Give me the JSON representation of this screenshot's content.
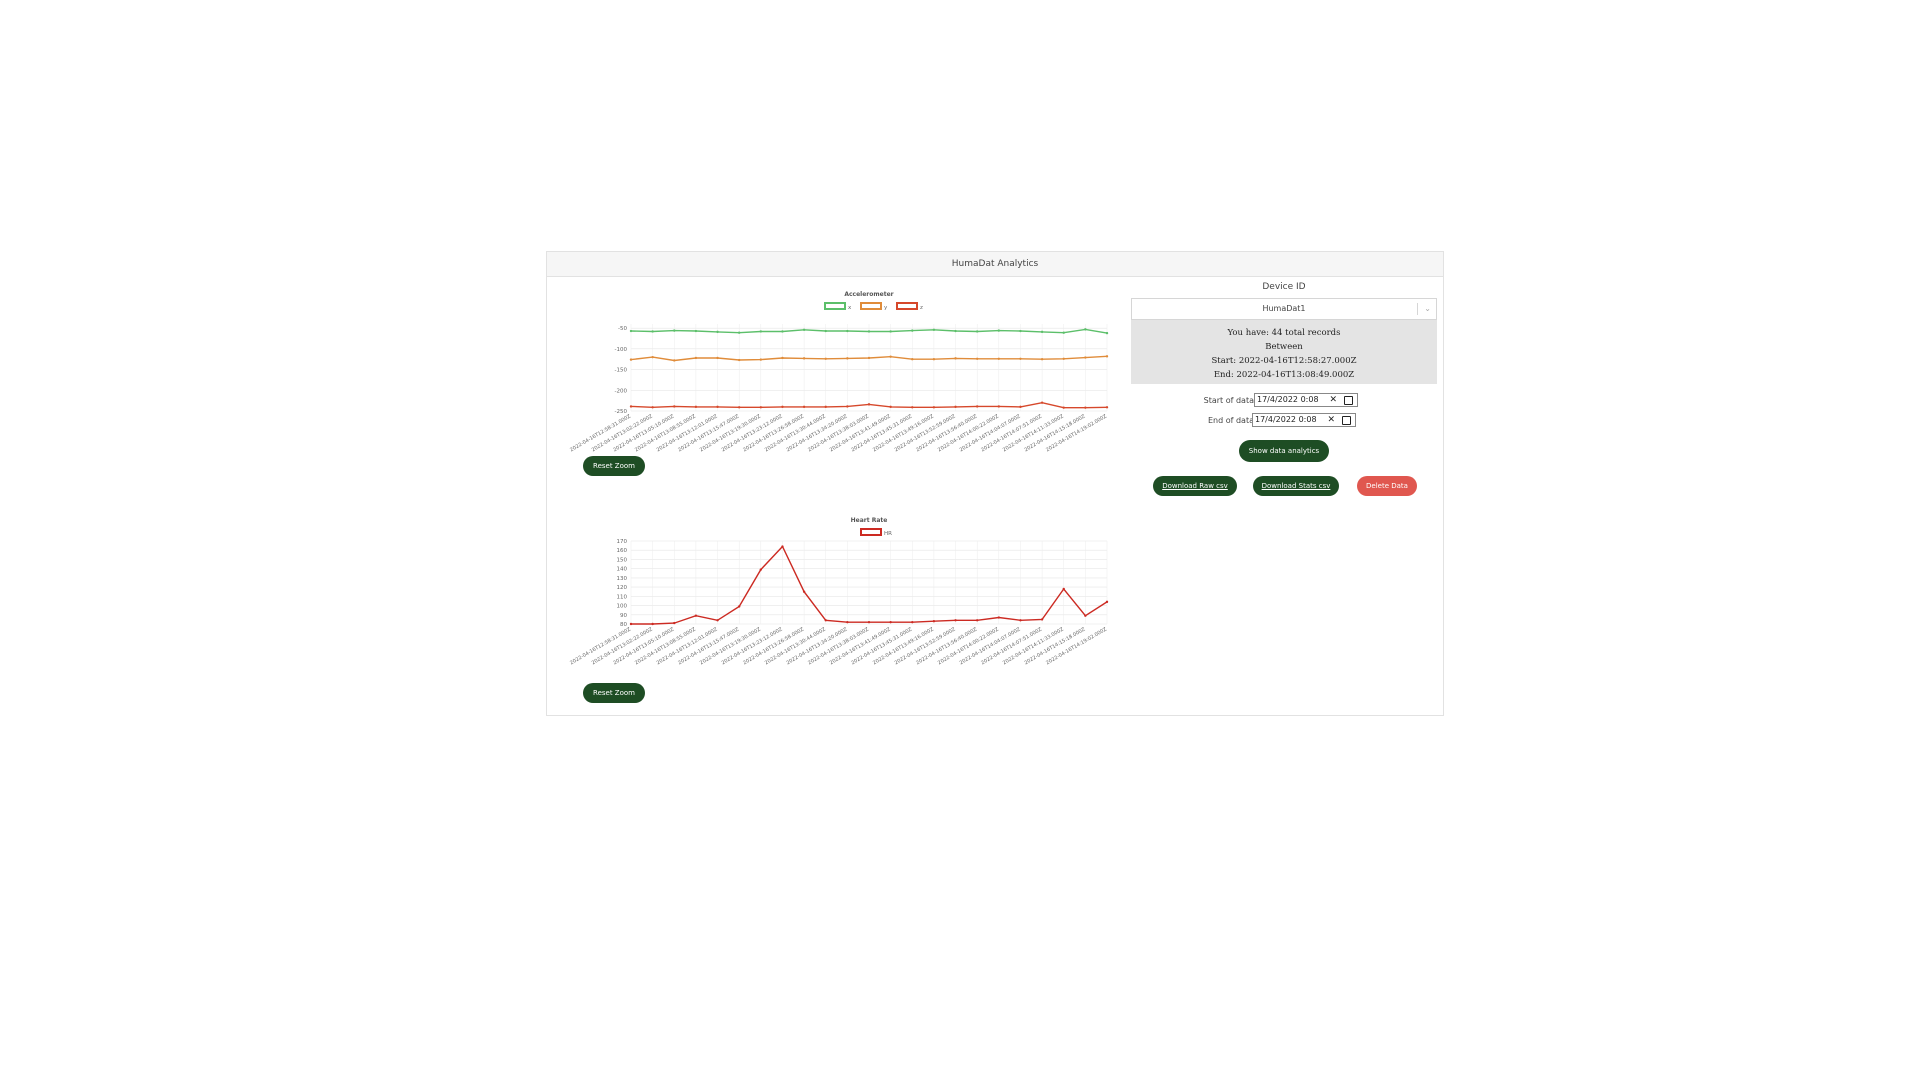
{
  "header": {
    "title": "HumaDat Analytics"
  },
  "accelerometer": {
    "reset_label": "Reset Zoom",
    "chart_data": {
      "type": "line",
      "title": "Accelerometer",
      "legend": "top",
      "ylim": [
        -250,
        -40
      ],
      "yticks": [
        -50,
        -100,
        -150,
        -200,
        -250
      ],
      "x": [
        "2022-04-16T12:58:31.000Z",
        "2022-04-16T13:02:22.000Z",
        "2022-04-16T13:05:10.000Z",
        "2022-04-16T13:08:55.000Z",
        "2022-04-16T13:12:01.000Z",
        "2022-04-16T13:15:47.000Z",
        "2022-04-16T13:19:30.000Z",
        "2022-04-16T13:23:12.000Z",
        "2022-04-16T13:26:58.000Z",
        "2022-04-16T13:30:44.000Z",
        "2022-04-16T13:34:20.000Z",
        "2022-04-16T13:38:03.000Z",
        "2022-04-16T13:41:49.000Z",
        "2022-04-16T13:45:31.000Z",
        "2022-04-16T13:49:16.000Z",
        "2022-04-16T13:52:59.000Z",
        "2022-04-16T13:56:40.000Z",
        "2022-04-16T14:00:22.000Z",
        "2022-04-16T14:04:07.000Z",
        "2022-04-16T14:07:51.000Z",
        "2022-04-16T14:11:33.000Z",
        "2022-04-16T14:15:18.000Z",
        "2022-04-16T14:19:02.000Z"
      ],
      "series": [
        {
          "name": "x",
          "color": "#5cbf6a",
          "values": [
            -57,
            -58,
            -56,
            -57,
            -59,
            -61,
            -58,
            -58,
            -54,
            -57,
            -57,
            -58,
            -58,
            -56,
            -54,
            -57,
            -58,
            -56,
            -57,
            -59,
            -61,
            -53,
            -62
          ]
        },
        {
          "name": "y",
          "color": "#e08c3a",
          "values": [
            -126,
            -120,
            -128,
            -122,
            -122,
            -127,
            -126,
            -122,
            -123,
            -124,
            -123,
            -122,
            -119,
            -125,
            -125,
            -123,
            -124,
            -124,
            -124,
            -125,
            -124,
            -121,
            -118
          ]
        },
        {
          "name": "z",
          "color": "#d6482b",
          "values": [
            -239,
            -241,
            -239,
            -240,
            -240,
            -241,
            -241,
            -240,
            -240,
            -240,
            -239,
            -234,
            -240,
            -241,
            -241,
            -240,
            -239,
            -239,
            -240,
            -230,
            -242,
            -242,
            -241
          ]
        }
      ]
    }
  },
  "heart_rate": {
    "reset_label": "Reset Zoom",
    "chart_data": {
      "type": "line",
      "title": "Heart Rate",
      "legend": "top",
      "ylim": [
        80,
        170
      ],
      "yticks": [
        170,
        160,
        150,
        140,
        130,
        120,
        110,
        100,
        90,
        80
      ],
      "x": [
        "2022-04-16T12:58:31.000Z",
        "2022-04-16T13:02:22.000Z",
        "2022-04-16T13:05:10.000Z",
        "2022-04-16T13:08:55.000Z",
        "2022-04-16T13:12:01.000Z",
        "2022-04-16T13:15:47.000Z",
        "2022-04-16T13:19:30.000Z",
        "2022-04-16T13:23:12.000Z",
        "2022-04-16T13:26:58.000Z",
        "2022-04-16T13:30:44.000Z",
        "2022-04-16T13:34:20.000Z",
        "2022-04-16T13:38:03.000Z",
        "2022-04-16T13:41:49.000Z",
        "2022-04-16T13:45:31.000Z",
        "2022-04-16T13:49:16.000Z",
        "2022-04-16T13:52:59.000Z",
        "2022-04-16T13:56:40.000Z",
        "2022-04-16T14:00:22.000Z",
        "2022-04-16T14:04:07.000Z",
        "2022-04-16T14:07:51.000Z",
        "2022-04-16T14:11:33.000Z",
        "2022-04-16T14:15:18.000Z",
        "2022-04-16T14:19:02.000Z"
      ],
      "series": [
        {
          "name": "HR",
          "color": "#cc2a22",
          "values": [
            80,
            80,
            81,
            89,
            84,
            99,
            139,
            164,
            115,
            84,
            82,
            82,
            82,
            82,
            83,
            84,
            84,
            87,
            84,
            85,
            118,
            89,
            104
          ]
        }
      ]
    }
  },
  "side": {
    "device_label": "Device ID",
    "device_value": "HumaDat1",
    "records": {
      "line1": "You have: 44 total records",
      "line2": "Between",
      "line3": "Start: 2022-04-16T12:58:27.000Z",
      "line4": "End: 2022-04-16T13:08:49.000Z"
    },
    "start_label": "Start of data",
    "start_value": "17/4/2022 0:08",
    "end_label": "End of data",
    "end_value": "17/4/2022 0:08",
    "show_label": "Show data analytics",
    "download_raw_label": "Download Raw csv",
    "download_stats_label": "Download Stats csv",
    "delete_label": "Delete Data"
  },
  "icons": {
    "clear": "clear-icon",
    "calendar": "calendar-icon",
    "chevron": "chevron-down-icon"
  }
}
